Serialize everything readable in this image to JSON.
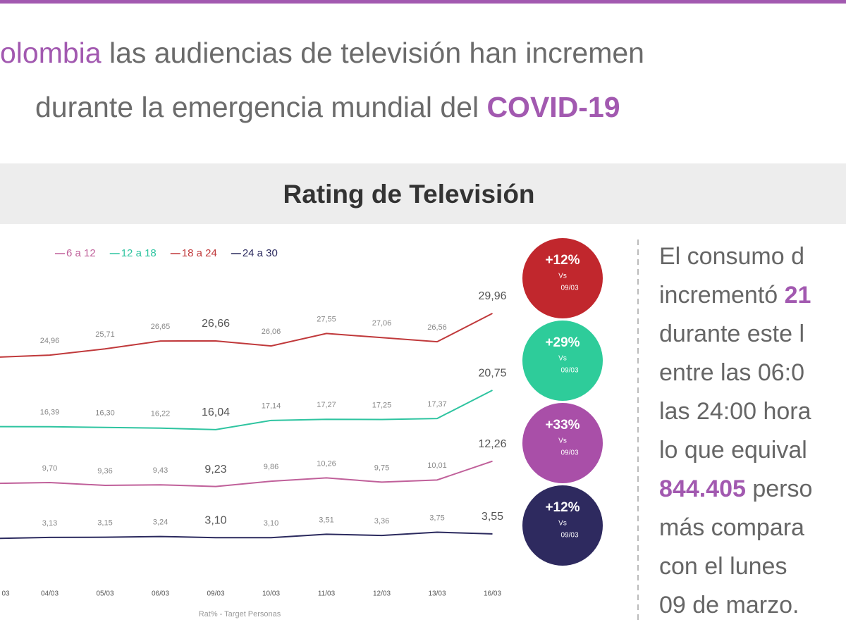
{
  "headline": {
    "line1": [
      {
        "text": "olombia",
        "accent": true
      },
      {
        "text": " las audiencias de televisión han incremen",
        "accent": false
      }
    ],
    "line2": [
      {
        "text": "durante la emergencia mundial del ",
        "accent": false
      },
      {
        "text": "COVID-19",
        "accent": true
      }
    ]
  },
  "chart_data": {
    "type": "line",
    "title": "Rating de Televisión",
    "categories": [
      "03",
      "04/03",
      "05/03",
      "06/03",
      "09/03",
      "10/03",
      "11/03",
      "12/03",
      "13/03",
      "16/03"
    ],
    "series": [
      {
        "name": "6 a 12",
        "color": "#c0609a",
        "values": [
          9.6,
          9.7,
          9.36,
          9.43,
          9.23,
          9.86,
          10.26,
          9.75,
          10.01,
          12.26
        ],
        "value_labels": [
          null,
          "9,70",
          "9,36",
          "9,43",
          "9,23",
          "9,86",
          "10,26",
          "9,75",
          "10,01",
          "12,26"
        ]
      },
      {
        "name": "12 a 18",
        "color": "#2ec4a0",
        "values": [
          16.4,
          16.39,
          16.3,
          16.22,
          16.04,
          17.14,
          17.27,
          17.25,
          17.37,
          20.75
        ],
        "value_labels": [
          null,
          "16,39",
          "16,30",
          "16,22",
          "16,04",
          "17,14",
          "17,27",
          "17,25",
          "17,37",
          "20,75"
        ]
      },
      {
        "name": "18 a 24",
        "color": "#c0393b",
        "values": [
          24.7,
          24.96,
          25.71,
          26.65,
          26.66,
          26.06,
          27.55,
          27.06,
          26.56,
          29.96
        ],
        "value_labels": [
          null,
          "24,96",
          "25,71",
          "26,65",
          "26,66",
          "26,06",
          "27,55",
          "27,06",
          "26,56",
          "29,96"
        ]
      },
      {
        "name": "24 a 30",
        "color": "#2b2a5e",
        "values": [
          3.0,
          3.13,
          3.15,
          3.24,
          3.1,
          3.1,
          3.51,
          3.36,
          3.75,
          3.55
        ],
        "value_labels": [
          null,
          "3,13",
          "3,15",
          "3,24",
          "3,10",
          "3,10",
          "3,51",
          "3,36",
          "3,75",
          "3,55"
        ]
      }
    ],
    "x_label": "Rat% - Target Personas",
    "badges": [
      {
        "text": "+12%",
        "vs": "Vs",
        "date": "09/03",
        "color": "#c1272d"
      },
      {
        "text": "+29%",
        "vs": "Vs",
        "date": "09/03",
        "color": "#2ecc9a"
      },
      {
        "text": "+33%",
        "vs": "Vs",
        "date": "09/03",
        "color": "#a94fa8"
      },
      {
        "text": "+12%",
        "vs": "Vs",
        "date": "09/03",
        "color": "#2e2a5f"
      }
    ]
  },
  "side_text": [
    [
      {
        "text": "El consumo d",
        "accent": false
      }
    ],
    [
      {
        "text": "incrementó ",
        "accent": false
      },
      {
        "text": "21",
        "accent": true
      }
    ],
    [
      {
        "text": "durante este l",
        "accent": false
      }
    ],
    [
      {
        "text": "entre las 06:0",
        "accent": false
      }
    ],
    [
      {
        "text": "las 24:00 hora",
        "accent": false
      }
    ],
    [
      {
        "text": "lo que equival",
        "accent": false
      }
    ],
    [
      {
        "text": "844.405",
        "accent": true
      },
      {
        "text": " perso",
        "accent": false
      }
    ],
    [
      {
        "text": "más compara",
        "accent": false
      }
    ],
    [
      {
        "text": "con el lunes",
        "accent": false
      }
    ],
    [
      {
        "text": "09 de marzo.",
        "accent": false
      }
    ]
  ]
}
